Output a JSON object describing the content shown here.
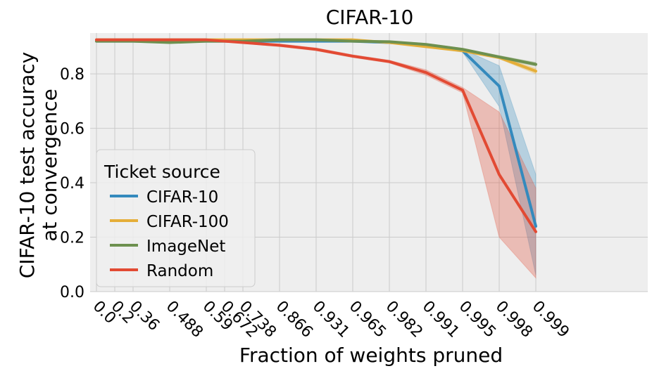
{
  "chart_data": {
    "type": "line",
    "title": "CIFAR-10",
    "xlabel": "Fraction of weights pruned",
    "ylabel_lines": [
      "CIFAR-10 test accuracy",
      "at convergence"
    ],
    "categories": [
      "0.0",
      "0.2",
      "0.36",
      "0.488",
      "0.59",
      "0.672",
      "0.738",
      "0.866",
      "0.931",
      "0.965",
      "0.982",
      "0.991",
      "0.995",
      "0.998",
      "0.999"
    ],
    "x_positions": [
      0,
      0.5,
      1,
      2,
      3,
      3.5,
      4,
      5,
      6,
      7,
      8,
      9,
      10,
      11,
      12
    ],
    "ylim": [
      0,
      0.95
    ],
    "yticks": [
      0.0,
      0.2,
      0.4,
      0.6,
      0.8
    ],
    "ytick_labels": [
      "0.0",
      "0.2",
      "0.4",
      "0.6",
      "0.8"
    ],
    "grid": true,
    "legend": {
      "title": "Ticket source",
      "placement": "center-left"
    },
    "series": [
      {
        "name": "CIFAR-10",
        "color": "#348ABD",
        "x": [
          0,
          1,
          2,
          3,
          4,
          5,
          6,
          7,
          8,
          9,
          10,
          11,
          12
        ],
        "values": [
          0.92,
          0.92,
          0.92,
          0.92,
          0.92,
          0.92,
          0.92,
          0.92,
          0.915,
          0.905,
          0.885,
          0.755,
          0.24
        ],
        "lower": [
          0.918,
          0.918,
          0.918,
          0.918,
          0.918,
          0.918,
          0.918,
          0.918,
          0.912,
          0.9,
          0.88,
          0.68,
          0.06
        ],
        "upper": [
          0.924,
          0.924,
          0.924,
          0.924,
          0.924,
          0.924,
          0.924,
          0.924,
          0.918,
          0.91,
          0.89,
          0.83,
          0.43
        ]
      },
      {
        "name": "CIFAR-100",
        "color": "#E5AE38",
        "x": [
          0,
          1,
          2,
          3,
          4,
          5,
          6,
          7,
          8,
          9,
          10,
          11,
          12
        ],
        "values": [
          0.925,
          0.925,
          0.925,
          0.925,
          0.925,
          0.925,
          0.925,
          0.925,
          0.915,
          0.9,
          0.885,
          0.86,
          0.81
        ],
        "lower": [
          0.922,
          0.922,
          0.922,
          0.922,
          0.922,
          0.922,
          0.922,
          0.922,
          0.912,
          0.896,
          0.88,
          0.855,
          0.8
        ],
        "upper": [
          0.928,
          0.928,
          0.928,
          0.928,
          0.928,
          0.928,
          0.928,
          0.928,
          0.918,
          0.904,
          0.89,
          0.865,
          0.82
        ]
      },
      {
        "name": "ImageNet",
        "color": "#6D904F",
        "x": [
          0,
          1,
          2,
          3,
          4,
          5,
          6,
          7,
          8,
          9,
          10,
          11,
          12
        ],
        "values": [
          0.92,
          0.92,
          0.915,
          0.92,
          0.92,
          0.925,
          0.925,
          0.92,
          0.918,
          0.908,
          0.89,
          0.862,
          0.835
        ],
        "lower": [
          0.917,
          0.917,
          0.912,
          0.917,
          0.917,
          0.922,
          0.922,
          0.917,
          0.915,
          0.904,
          0.886,
          0.857,
          0.828
        ],
        "upper": [
          0.923,
          0.923,
          0.918,
          0.923,
          0.923,
          0.928,
          0.928,
          0.923,
          0.921,
          0.912,
          0.894,
          0.867,
          0.842
        ]
      },
      {
        "name": "Random",
        "color": "#E24A33",
        "x": [
          0,
          1,
          2,
          3,
          4,
          5,
          6,
          7,
          8,
          9,
          10,
          11,
          12
        ],
        "values": [
          0.925,
          0.925,
          0.925,
          0.925,
          0.915,
          0.905,
          0.89,
          0.865,
          0.845,
          0.805,
          0.74,
          0.43,
          0.22
        ],
        "lower": [
          0.922,
          0.922,
          0.922,
          0.922,
          0.912,
          0.9,
          0.885,
          0.86,
          0.84,
          0.795,
          0.73,
          0.2,
          0.05
        ],
        "upper": [
          0.928,
          0.928,
          0.928,
          0.928,
          0.918,
          0.91,
          0.895,
          0.87,
          0.85,
          0.815,
          0.75,
          0.66,
          0.38
        ]
      }
    ]
  }
}
